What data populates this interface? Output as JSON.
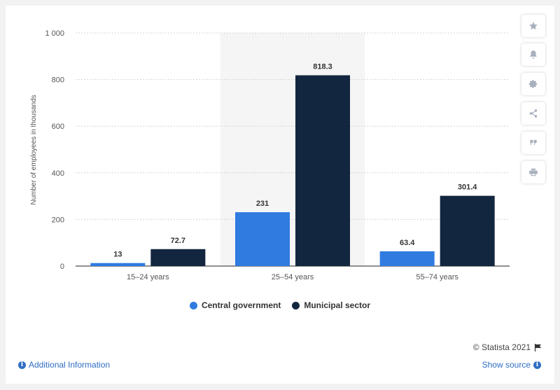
{
  "chart_data": {
    "type": "bar",
    "categories": [
      "15-24 years",
      "25-54 years",
      "55-74 years"
    ],
    "series": [
      {
        "name": "Central government",
        "values": [
          13,
          231,
          63.4
        ],
        "color": "#2f7be0"
      },
      {
        "name": "Municipal sector",
        "values": [
          72.7,
          818.3,
          301.4
        ],
        "color": "#13263f"
      }
    ],
    "ylabel": "Number of employees in thousands",
    "xlabel": "",
    "ylim": [
      0,
      1000
    ],
    "yticks": [
      0,
      200,
      400,
      600,
      800,
      1000
    ],
    "ytick_labels": [
      "0",
      "200",
      "400",
      "600",
      "800",
      "1 000"
    ],
    "grid": true,
    "legend_position": "bottom",
    "highlighted_category": "25-54 years"
  },
  "toolbar": {
    "icons": [
      "star-icon",
      "bell-icon",
      "gear-icon",
      "share-icon",
      "quote-icon",
      "print-icon"
    ]
  },
  "footer": {
    "credit": "© Statista 2021",
    "additional_info": "Additional Information",
    "show_source": "Show source"
  }
}
